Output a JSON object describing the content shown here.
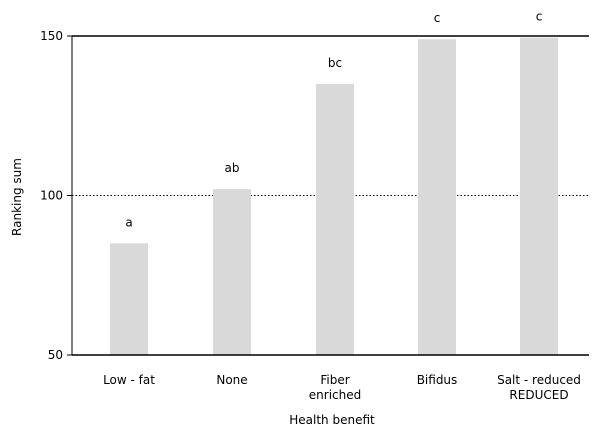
{
  "chart_data": {
    "type": "bar",
    "xlabel": "Health benefit",
    "ylabel": "Ranking sum",
    "ylim": [
      50,
      150
    ],
    "yticks": [
      50,
      100,
      150
    ],
    "reference_lines": [
      100
    ],
    "grid": false,
    "categories": [
      [
        "Low - fat"
      ],
      [
        "None"
      ],
      [
        "Fiber",
        "enriched"
      ],
      [
        "Bifidus"
      ],
      [
        "Salt - reduced",
        "REDUCED"
      ]
    ],
    "values": [
      85,
      102,
      135,
      149,
      149.5
    ],
    "significance_labels": [
      "a",
      "ab",
      "bc",
      "c",
      "c"
    ],
    "colors": {
      "bar": "#d9d9d9",
      "axis": "#000000",
      "reference": "#000000"
    }
  }
}
